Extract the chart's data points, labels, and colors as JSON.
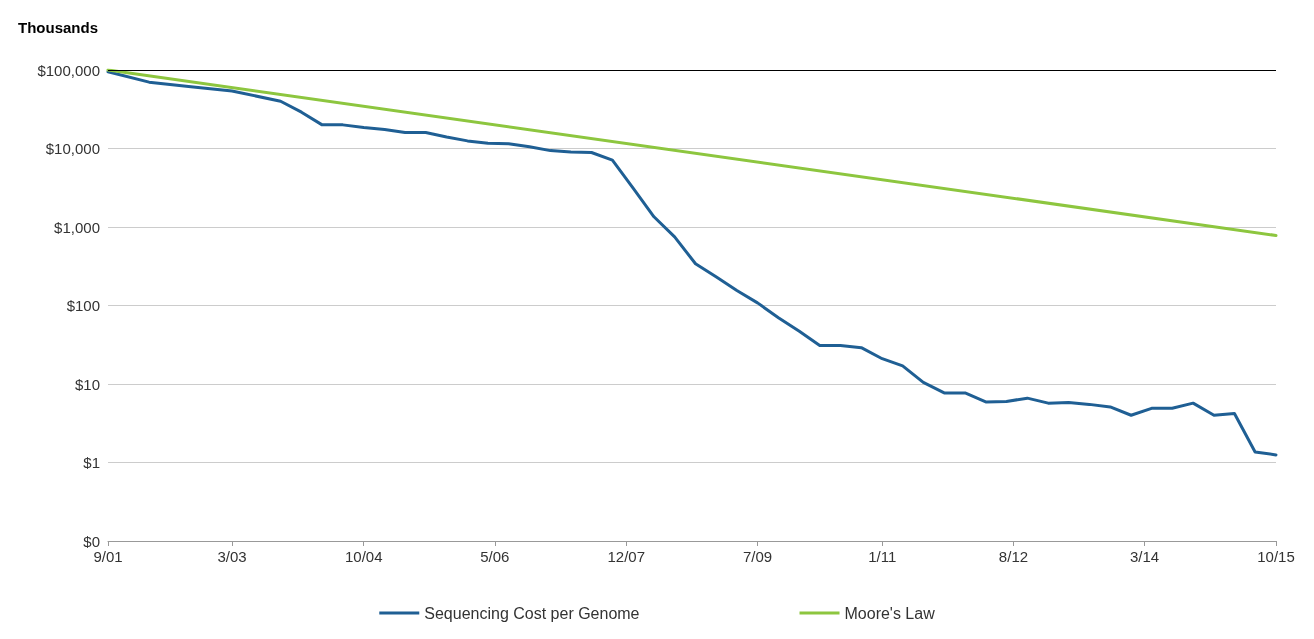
{
  "chart_data": {
    "type": "line",
    "ylabel": "Thousands",
    "log": "y",
    "grid": "y",
    "legend": "bottom",
    "marker": "none",
    "line_style": "solid",
    "xlim": [
      "2001-09",
      "2015-10"
    ],
    "xticks": [
      {
        "value": "2001-09",
        "label": "9/01"
      },
      {
        "value": "2003-03",
        "label": "3/03"
      },
      {
        "value": "2004-10",
        "label": "10/04"
      },
      {
        "value": "2006-05",
        "label": "5/06"
      },
      {
        "value": "2007-12",
        "label": "12/07"
      },
      {
        "value": "2009-07",
        "label": "7/09"
      },
      {
        "value": "2011-01",
        "label": "1/11"
      },
      {
        "value": "2012-08",
        "label": "8/12"
      },
      {
        "value": "2014-03",
        "label": "3/14"
      },
      {
        "value": "2015-10",
        "label": "10/15"
      }
    ],
    "ylim": [
      0.1,
      100000
    ],
    "yticks": [
      {
        "value": 0.1,
        "label": "$0"
      },
      {
        "value": 1,
        "label": "$1"
      },
      {
        "value": 10,
        "label": "$10"
      },
      {
        "value": 100,
        "label": "$100"
      },
      {
        "value": 1000,
        "label": "$1,000"
      },
      {
        "value": 10000,
        "label": "$10,000"
      },
      {
        "value": 100000,
        "label": "$100,000"
      }
    ],
    "ref_lines": [
      {
        "axis": "y",
        "value": 100000,
        "color": "#000000"
      }
    ],
    "series": [
      {
        "name": "Sequencing Cost per Genome",
        "color": "#1f5f94",
        "x": [
          "2001-09",
          "2002-03",
          "2002-09",
          "2003-03",
          "2003-10",
          "2004-01",
          "2004-04",
          "2004-07",
          "2004-10",
          "2005-01",
          "2005-04",
          "2005-07",
          "2005-10",
          "2006-01",
          "2006-04",
          "2006-07",
          "2006-10",
          "2007-01",
          "2007-04",
          "2007-07",
          "2007-10",
          "2008-01",
          "2008-04",
          "2008-07",
          "2008-10",
          "2009-01",
          "2009-04",
          "2009-07",
          "2009-10",
          "2010-01",
          "2010-04",
          "2010-07",
          "2010-10",
          "2011-01",
          "2011-04",
          "2011-07",
          "2011-10",
          "2012-01",
          "2012-04",
          "2012-07",
          "2012-10",
          "2013-01",
          "2013-04",
          "2013-07",
          "2013-10",
          "2014-01",
          "2014-04",
          "2014-07",
          "2014-10",
          "2015-01",
          "2015-04",
          "2015-07",
          "2015-10"
        ],
        "values": [
          95000,
          70000,
          61000,
          54000,
          40000,
          29000,
          20000,
          20000,
          18500,
          17500,
          16000,
          16000,
          14000,
          12500,
          11700,
          11500,
          10500,
          9400,
          9000,
          8900,
          7100,
          3100,
          1350,
          750,
          340,
          230,
          155,
          108,
          70,
          47,
          31,
          31,
          29,
          21,
          17,
          10.5,
          7.7,
          7.7,
          5.9,
          6.0,
          6.6,
          5.7,
          5.8,
          5.5,
          5.1,
          4.0,
          4.9,
          4.9,
          5.7,
          4.0,
          4.2,
          1.36,
          1.25
        ]
      },
      {
        "name": "Moore's Law",
        "color": "#8dc63f",
        "x": [
          "2001-09",
          "2015-10"
        ],
        "values": [
          100000,
          780
        ]
      }
    ]
  }
}
